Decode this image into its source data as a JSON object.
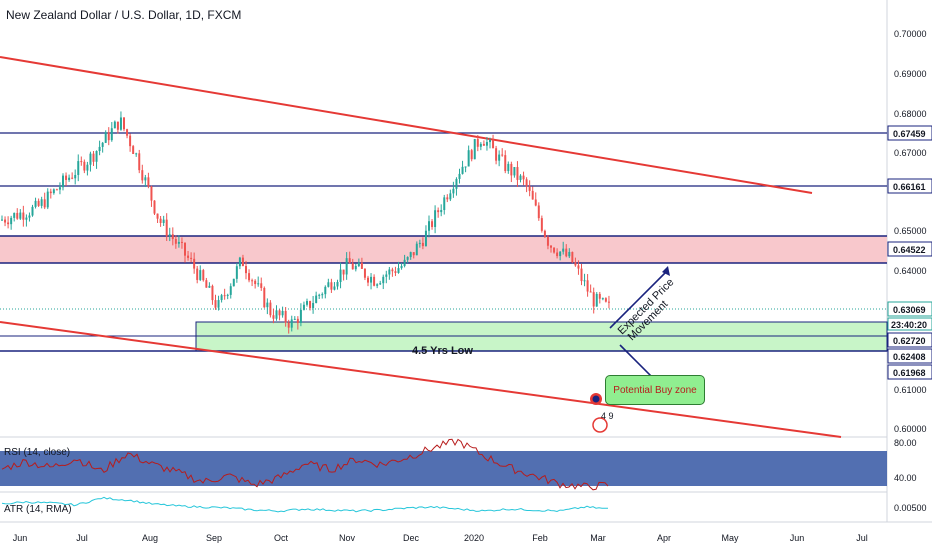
{
  "header": {
    "title": "New Zealand Dollar / U.S. Dollar, 1D, FXCM"
  },
  "annotations": {
    "low_text": "4.5 Yrs Low",
    "arrow_text_line1": "Expected Price",
    "arrow_text_line2": "Movement",
    "buy_zone_text": "Potential Buy zone",
    "event_badge_text": "4 9"
  },
  "colors": {
    "up": "#26a69a",
    "down": "#ef5350",
    "trendline": "#e53935",
    "hline": "#1a237e",
    "resistance_zone": "#f8c8cc",
    "support_zone": "#c8f5c8",
    "rsi_band": "#3f5fa8",
    "atr_line": "#26c6da"
  },
  "chart_data": [
    {
      "type": "candlestick",
      "title": "New Zealand Dollar / U.S. Dollar, 1D, FXCM",
      "ylim": [
        0.595,
        0.707
      ],
      "y_ticks": [
        "0.70000",
        "0.69000",
        "0.68000",
        "0.67000",
        "0.65000",
        "0.64000",
        "0.61000",
        "0.60000"
      ],
      "x_ticks": [
        "Jun",
        "Jul",
        "Aug",
        "Sep",
        "Oct",
        "Nov",
        "Dec",
        "2020",
        "Feb",
        "Mar",
        "Apr",
        "May",
        "Jun",
        "Jul"
      ],
      "horizontal_levels": [
        "0.67459",
        "0.66161",
        "0.64522",
        "0.62720",
        "0.62408",
        "0.61968"
      ],
      "last_price": "0.63069",
      "countdown": "23:40:20",
      "zones": [
        {
          "name": "resistance",
          "from": 0.6426,
          "to": 0.6489
        },
        {
          "name": "support",
          "from": 0.6242,
          "to": 0.6285
        }
      ],
      "trendlines": [
        {
          "from": [
            "2019-05-24",
            0.6945
          ],
          "to": [
            "2020-06-05",
            0.6595
          ]
        },
        {
          "from": [
            "2019-05-24",
            0.6282
          ],
          "to": [
            "2020-06-19",
            0.5975
          ]
        }
      ],
      "close_path": [
        [
          "2019-05-24",
          0.653
        ],
        [
          "2019-06-10",
          0.656
        ],
        [
          "2019-06-25",
          0.664
        ],
        [
          "2019-07-05",
          0.669
        ],
        [
          "2019-07-18",
          0.678
        ],
        [
          "2019-07-25",
          0.67
        ],
        [
          "2019-08-05",
          0.653
        ],
        [
          "2019-08-20",
          0.642
        ],
        [
          "2019-09-01",
          0.631
        ],
        [
          "2019-09-12",
          0.643
        ],
        [
          "2019-09-25",
          0.63
        ],
        [
          "2019-10-05",
          0.627
        ],
        [
          "2019-10-15",
          0.633
        ],
        [
          "2019-10-31",
          0.642
        ],
        [
          "2019-11-12",
          0.638
        ],
        [
          "2019-11-26",
          0.642
        ],
        [
          "2019-12-06",
          0.65
        ],
        [
          "2019-12-20",
          0.665
        ],
        [
          "2019-12-31",
          0.674
        ],
        [
          "2020-01-10",
          0.667
        ],
        [
          "2020-01-20",
          0.662
        ],
        [
          "2020-01-31",
          0.647
        ],
        [
          "2020-02-10",
          0.643
        ],
        [
          "2020-02-20",
          0.633
        ],
        [
          "2020-02-28",
          0.6307
        ]
      ]
    },
    {
      "type": "line",
      "title": "RSI (14, close)",
      "ylim": [
        28,
        82
      ],
      "y_ticks": [
        "80.00",
        "40.00"
      ],
      "band": [
        30,
        70
      ],
      "values": [
        50,
        58,
        52,
        61,
        48,
        66,
        55,
        47,
        38,
        44,
        35,
        42,
        56,
        50,
        60,
        55,
        62,
        71,
        78,
        64,
        52,
        44,
        36,
        33,
        35
      ]
    },
    {
      "type": "line",
      "title": "ATR (14, RMA)",
      "ylim": [
        0.004,
        0.007
      ],
      "y_ticks": [
        "0.00500"
      ],
      "values": [
        0.0058,
        0.006,
        0.0059,
        0.0057,
        0.0064,
        0.0062,
        0.0058,
        0.0056,
        0.0055,
        0.0054,
        0.0052,
        0.0051,
        0.0053,
        0.0052,
        0.0051,
        0.0052,
        0.0054,
        0.0055,
        0.0053,
        0.0051,
        0.0053,
        0.0052,
        0.0051,
        0.0055,
        0.0053
      ]
    }
  ]
}
